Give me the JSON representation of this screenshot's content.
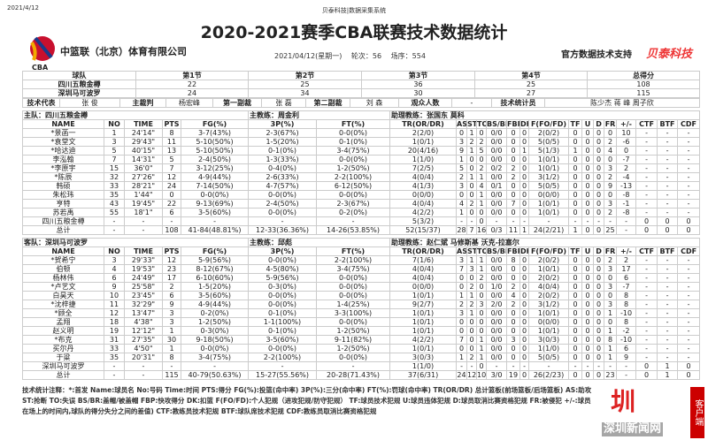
{
  "print_date": "2021/4/12",
  "system_name": "贝泰科技|数据采集系统",
  "title": "2020-2021赛季CBA联赛技术数据统计",
  "organization": "中篮联（北京）体育有限公司",
  "logo_text": "CBA",
  "game_date": "2021/04/12(星期一)",
  "round": "轮次：56",
  "match_no": "场序：554",
  "support_label": "官方数据技术支持",
  "support_brand": "贝泰科技",
  "score_table": {
    "headers": [
      "球队",
      "第1节",
      "第2节",
      "第3节",
      "第4节",
      "总得分"
    ],
    "rows": [
      [
        "四川五粮金樽",
        "22",
        "25",
        "36",
        "25",
        "108"
      ],
      [
        "深圳马可波罗",
        "24",
        "34",
        "30",
        "27",
        "115"
      ]
    ]
  },
  "officials": [
    "技术代表",
    "张 俊",
    "主裁判",
    "杨宏峰",
    "第一副裁",
    "张 磊",
    "第二副裁",
    "刘 森",
    "观众人数",
    "-",
    "技术统计员",
    "陈少杰 蒋 峰 周子欣"
  ],
  "columns": [
    "NAME",
    "NO",
    "TIME",
    "PTS",
    "FG(%)",
    "3P(%)",
    "FT(%)",
    "TR(OR/DR)",
    "AS",
    "ST",
    "TO",
    "BS/BR",
    "FBP",
    "DK",
    "F(FO/FD)",
    "TF",
    "U",
    "D",
    "FR",
    "+/-",
    "CTF",
    "BTF",
    "CDF"
  ],
  "home": {
    "team_label": "主队：四川五粮金樽",
    "coach": "主教练：周金利",
    "assistants": "助理教练：张国东 莫科",
    "rows": [
      [
        "*景菡一",
        "1",
        "24'14\"",
        "8",
        "3-7(43%)",
        "2-3(67%)",
        "0-0(0%)",
        "2(2/0)",
        "0",
        "1",
        "0",
        "0/0",
        "0",
        "0",
        "2(0/2)",
        "0",
        "0",
        "0",
        "0",
        "10",
        "-",
        "-",
        "-"
      ],
      [
        "*袁堂文",
        "3",
        "29'43\"",
        "11",
        "5-10(50%)",
        "1-5(20%)",
        "0-1(0%)",
        "1(0/1)",
        "3",
        "2",
        "2",
        "0/0",
        "0",
        "0",
        "5(0/5)",
        "0",
        "0",
        "0",
        "2",
        "-6",
        "-",
        "-",
        "-"
      ],
      [
        "*哈达迪",
        "5",
        "40'15\"",
        "13",
        "5-10(50%)",
        "0-1(0%)",
        "3-4(75%)",
        "20(4/16)",
        "9",
        "1",
        "5",
        "0/0",
        "0",
        "1",
        "5(1/3)",
        "1",
        "0",
        "0",
        "4",
        "0",
        "-",
        "-",
        "-"
      ],
      [
        "李泓翰",
        "7",
        "14'31\"",
        "5",
        "2-4(50%)",
        "1-3(33%)",
        "0-0(0%)",
        "1(1/0)",
        "1",
        "0",
        "0",
        "0/0",
        "0",
        "0",
        "1(0/1)",
        "0",
        "0",
        "0",
        "0",
        "-7",
        "-",
        "-",
        "-"
      ],
      [
        "*李原宇",
        "15",
        "36'0\"",
        "7",
        "3-12(25%)",
        "0-4(0%)",
        "1-2(50%)",
        "7(2/5)",
        "5",
        "0",
        "2",
        "0/2",
        "2",
        "0",
        "1(0/1)",
        "0",
        "0",
        "0",
        "3",
        "2",
        "-",
        "-",
        "-"
      ],
      [
        "*陈辰",
        "32",
        "27'26\"",
        "12",
        "4-9(44%)",
        "2-6(33%)",
        "2-2(100%)",
        "4(0/4)",
        "2",
        "1",
        "1",
        "0/0",
        "2",
        "0",
        "3(1/2)",
        "0",
        "0",
        "0",
        "2",
        "-4",
        "-",
        "-",
        "-"
      ],
      [
        "韩硕",
        "33",
        "28'21\"",
        "24",
        "7-14(50%)",
        "4-7(57%)",
        "6-12(50%)",
        "4(1/3)",
        "3",
        "0",
        "4",
        "0/1",
        "0",
        "0",
        "5(0/5)",
        "0",
        "0",
        "0",
        "9",
        "-13",
        "-",
        "-",
        "-"
      ],
      [
        "朱松玮",
        "35",
        "1'44\"",
        "0",
        "0-0(0%)",
        "0-0(0%)",
        "0-0(0%)",
        "0(0/0)",
        "0",
        "0",
        "1",
        "0/0",
        "0",
        "0",
        "0(0/0)",
        "0",
        "0",
        "0",
        "0",
        "-8",
        "-",
        "-",
        "-"
      ],
      [
        "亨特",
        "43",
        "19'45\"",
        "22",
        "9-13(69%)",
        "2-4(50%)",
        "2-3(67%)",
        "4(0/4)",
        "4",
        "2",
        "1",
        "0/0",
        "7",
        "0",
        "1(0/1)",
        "0",
        "0",
        "0",
        "3",
        "-1",
        "-",
        "-",
        "-"
      ],
      [
        "苏若禹",
        "55",
        "18'1\"",
        "6",
        "3-5(60%)",
        "0-0(0%)",
        "0-2(0%)",
        "4(2/2)",
        "1",
        "0",
        "0",
        "0/0",
        "0",
        "0",
        "1(0/1)",
        "0",
        "0",
        "0",
        "2",
        "-8",
        "-",
        "-",
        "-"
      ],
      [
        "四川五粮金樽",
        "-",
        "-",
        "-",
        "-",
        "-",
        "-",
        "5(3/2)",
        "-",
        "-",
        "0",
        "-",
        "-",
        "-",
        "-",
        "-",
        "-",
        "-",
        "-",
        "-",
        "0",
        "0",
        "0"
      ],
      [
        "总计",
        "-",
        "-",
        "108",
        "41-84(48.81%)",
        "12-33(36.36%)",
        "14-26(53.85%)",
        "52(15/37)",
        "28",
        "7",
        "16",
        "0/3",
        "11",
        "1",
        "24(2/21)",
        "1",
        "0",
        "0",
        "25",
        "-",
        "0",
        "0",
        "0"
      ]
    ]
  },
  "away": {
    "team_label": "客队：深圳马可波罗",
    "coach": "主教练：邱彪",
    "assistants": "助理教练：赵仁斌 马修斯基 沃克-拉塞尔",
    "rows": [
      [
        "*贺希宁",
        "3",
        "29'33\"",
        "12",
        "5-9(56%)",
        "0-0(0%)",
        "2-2(100%)",
        "7(1/6)",
        "3",
        "1",
        "1",
        "0/0",
        "8",
        "0",
        "2(0/2)",
        "0",
        "0",
        "0",
        "2",
        "2",
        "-",
        "-",
        "-"
      ],
      [
        "伯顿",
        "4",
        "19'53\"",
        "23",
        "8-12(67%)",
        "4-5(80%)",
        "3-4(75%)",
        "4(0/4)",
        "7",
        "3",
        "1",
        "0/0",
        "0",
        "0",
        "1(0/1)",
        "0",
        "0",
        "0",
        "3",
        "17",
        "-",
        "-",
        "-"
      ],
      [
        "杨林伟",
        "6",
        "24'49\"",
        "17",
        "6-10(60%)",
        "5-9(56%)",
        "0-0(0%)",
        "4(0/4)",
        "0",
        "0",
        "2",
        "0/0",
        "0",
        "0",
        "2(0/2)",
        "0",
        "0",
        "0",
        "0",
        "6",
        "-",
        "-",
        "-"
      ],
      [
        "*卢艺文",
        "9",
        "25'58\"",
        "2",
        "1-5(20%)",
        "0-3(0%)",
        "0-0(0%)",
        "0(0/0)",
        "0",
        "2",
        "0",
        "1/0",
        "2",
        "0",
        "4(0/4)",
        "0",
        "0",
        "0",
        "3",
        "-7",
        "-",
        "-",
        "-"
      ],
      [
        "白昊天",
        "10",
        "23'45\"",
        "6",
        "3-5(60%)",
        "0-0(0%)",
        "0-0(0%)",
        "1(0/1)",
        "1",
        "1",
        "0",
        "0/0",
        "4",
        "0",
        "2(0/2)",
        "0",
        "0",
        "0",
        "0",
        "8",
        "-",
        "-",
        "-"
      ],
      [
        "*沈梓捷",
        "11",
        "32'29\"",
        "9",
        "4-9(44%)",
        "0-0(0%)",
        "1-4(25%)",
        "9(2/7)",
        "2",
        "2",
        "3",
        "2/0",
        "2",
        "0",
        "3(1/2)",
        "0",
        "0",
        "0",
        "3",
        "8",
        "-",
        "-",
        "-"
      ],
      [
        "*顾全",
        "12",
        "13'47\"",
        "3",
        "0-2(0%)",
        "0-1(0%)",
        "3-3(100%)",
        "1(0/1)",
        "3",
        "1",
        "0",
        "0/0",
        "0",
        "0",
        "1(0/1)",
        "0",
        "0",
        "0",
        "1",
        "-10",
        "-",
        "-",
        "-"
      ],
      [
        "孟翔",
        "18",
        "4'38\"",
        "3",
        "1-2(50%)",
        "1-1(100%)",
        "0-0(0%)",
        "1(0/1)",
        "0",
        "0",
        "0",
        "0/0",
        "0",
        "0",
        "0(0/0)",
        "0",
        "0",
        "0",
        "0",
        "8",
        "-",
        "-",
        "-"
      ],
      [
        "赵义明",
        "19",
        "12'12\"",
        "1",
        "0-3(0%)",
        "0-1(0%)",
        "1-2(50%)",
        "1(0/1)",
        "0",
        "0",
        "0",
        "0/0",
        "0",
        "0",
        "1(0/1)",
        "0",
        "0",
        "0",
        "1",
        "-2",
        "-",
        "-",
        "-"
      ],
      [
        "*布克",
        "31",
        "27'35\"",
        "30",
        "9-18(50%)",
        "3-5(60%)",
        "9-11(82%)",
        "4(2/2)",
        "7",
        "0",
        "1",
        "0/0",
        "3",
        "0",
        "3(0/3)",
        "0",
        "0",
        "0",
        "8",
        "-10",
        "-",
        "-",
        "-"
      ],
      [
        "买尔丹",
        "33",
        "4'50\"",
        "1",
        "0-0(0%)",
        "0-0(0%)",
        "1-2(50%)",
        "1(0/1)",
        "0",
        "0",
        "1",
        "0/0",
        "0",
        "0",
        "1(1/0)",
        "0",
        "0",
        "0",
        "1",
        "6",
        "-",
        "-",
        "-"
      ],
      [
        "于粱",
        "35",
        "20'31\"",
        "8",
        "3-4(75%)",
        "2-2(100%)",
        "0-0(0%)",
        "3(0/3)",
        "1",
        "2",
        "1",
        "0/0",
        "0",
        "0",
        "5(0/5)",
        "0",
        "0",
        "0",
        "1",
        "9",
        "-",
        "-",
        "-"
      ],
      [
        "深圳马可波罗",
        "-",
        "-",
        "-",
        "-",
        "-",
        "-",
        "1(1/0)",
        "-",
        "-",
        "0",
        "-",
        "-",
        "-",
        "-",
        "-",
        "-",
        "-",
        "-",
        "-",
        "0",
        "1",
        "0"
      ],
      [
        "总计",
        "-",
        "-",
        "115",
        "40-79(50.63%)",
        "15-27(55.56%)",
        "20-28(71.43%)",
        "37(6/31)",
        "24",
        "12",
        "10",
        "3/0",
        "19",
        "0",
        "26(2/23)",
        "0",
        "0",
        "0",
        "23",
        "-",
        "0",
        "1",
        "0"
      ]
    ]
  },
  "notes": "技术统计注释：*:首发 Name:球员名 No:号码 Time:时间 PTS:得分 FG(%):投篮(命中率) 3P(%):三分(命中率) FT(%):罚球(命中率) TR(OR/DR) 总计篮板(前场篮板/后场篮板) AS:助攻 ST:抢断 TO:失误 BS/BR:盖帽/被盖帽 FBP:快攻得分 DK:扣篮 F(FO/FD):个人犯规（进攻犯规/防守犯规） TF:球员技术犯规 U:球员违体犯规 D:球员取消比赛资格犯规 FR:被侵犯 +/-:球员在场上的时间内,球队的得分失分之间的差值) CTF:教练员技术犯规 BTF:球队席技术犯规 CDF:教练员取消比赛资格犯规",
  "watermark": {
    "text": "深圳新闻网",
    "badge": "客户端"
  }
}
